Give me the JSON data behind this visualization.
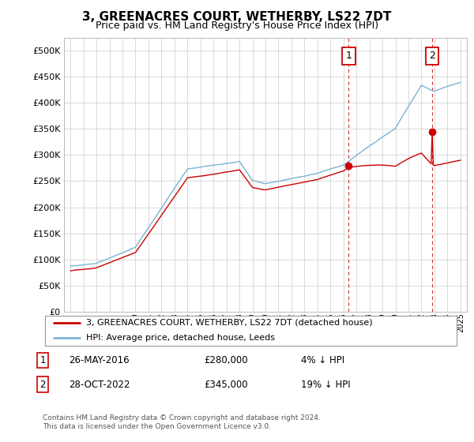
{
  "title": "3, GREENACRES COURT, WETHERBY, LS22 7DT",
  "subtitle": "Price paid vs. HM Land Registry's House Price Index (HPI)",
  "ytick_values": [
    0,
    50000,
    100000,
    150000,
    200000,
    250000,
    300000,
    350000,
    400000,
    450000,
    500000
  ],
  "ylim": [
    0,
    525000
  ],
  "xlim_start": 1994.5,
  "xlim_end": 2025.5,
  "transaction1_year": 2016.4,
  "transaction1_price": 280000,
  "transaction2_year": 2022.83,
  "transaction2_price": 345000,
  "legend_line1": "3, GREENACRES COURT, WETHERBY, LS22 7DT (detached house)",
  "legend_line2": "HPI: Average price, detached house, Leeds",
  "note1_date": "26-MAY-2016",
  "note1_price": "£280,000",
  "note1_pct": "4% ↓ HPI",
  "note2_date": "28-OCT-2022",
  "note2_price": "£345,000",
  "note2_pct": "19% ↓ HPI",
  "footer": "Contains HM Land Registry data © Crown copyright and database right 2024.\nThis data is licensed under the Open Government Licence v3.0.",
  "hpi_color": "#7ab3d4",
  "property_color": "#cc0000",
  "background_color": "#ffffff",
  "grid_color": "#cccccc"
}
